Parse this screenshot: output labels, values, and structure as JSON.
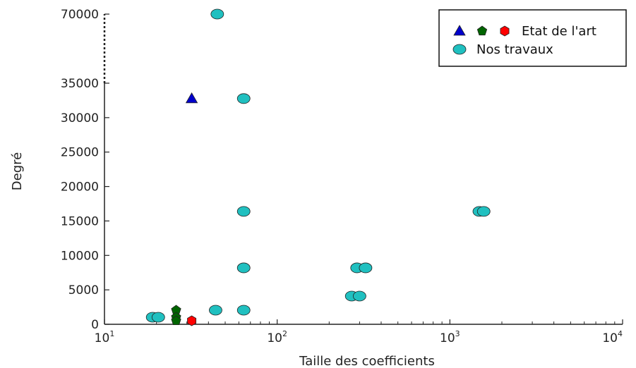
{
  "chart_data": {
    "type": "scatter",
    "xlabel": "Taille des coefficients",
    "ylabel": "Degré",
    "x_scale": "log",
    "xlim": [
      10,
      10000
    ],
    "x_ticks": [
      {
        "value": 10,
        "base": "10",
        "exp": "1"
      },
      {
        "value": 100,
        "base": "10",
        "exp": "2"
      },
      {
        "value": 1000,
        "base": "10",
        "exp": "3"
      },
      {
        "value": 10000,
        "base": "10",
        "exp": "4"
      }
    ],
    "y_axis_break": {
      "from": 35000,
      "to": 70000
    },
    "y_ticks": [
      {
        "value": 0,
        "label": "0"
      },
      {
        "value": 5000,
        "label": "5000"
      },
      {
        "value": 10000,
        "label": "10000"
      },
      {
        "value": 15000,
        "label": "15000"
      },
      {
        "value": 20000,
        "label": "20000"
      },
      {
        "value": 25000,
        "label": "25000"
      },
      {
        "value": 30000,
        "label": "30000"
      },
      {
        "value": 35000,
        "label": "35000"
      },
      {
        "value": 70000,
        "label": "70000"
      }
    ],
    "legend": {
      "position": "top-right",
      "entries": [
        {
          "label": "Etat de l'art",
          "markers": [
            "triangle",
            "pentagon",
            "hexagon"
          ],
          "colors": [
            "#0000cc",
            "#006400",
            "#ff0000"
          ]
        },
        {
          "label": "Nos travaux",
          "markers": [
            "circle"
          ],
          "colors": [
            "#20c0c0"
          ]
        }
      ]
    },
    "series": [
      {
        "group": "Etat de l'art",
        "marker": "triangle",
        "color": "#0000cc",
        "points": [
          {
            "x": 32,
            "y": 32768
          }
        ]
      },
      {
        "group": "Etat de l'art",
        "marker": "pentagon",
        "color": "#006400",
        "points": [
          {
            "x": 26,
            "y": 2048
          },
          {
            "x": 26,
            "y": 1024
          },
          {
            "x": 26,
            "y": 512
          }
        ]
      },
      {
        "group": "Etat de l'art",
        "marker": "hexagon",
        "color": "#ff0000",
        "points": [
          {
            "x": 32,
            "y": 512
          }
        ]
      },
      {
        "group": "Nos travaux",
        "marker": "circle",
        "color": "#20c0c0",
        "points": [
          {
            "x": 19,
            "y": 1024
          },
          {
            "x": 20.5,
            "y": 1024
          },
          {
            "x": 44,
            "y": 2048
          },
          {
            "x": 64,
            "y": 2048
          },
          {
            "x": 64,
            "y": 8192
          },
          {
            "x": 64,
            "y": 16384
          },
          {
            "x": 64,
            "y": 32768
          },
          {
            "x": 45,
            "y": 70000
          },
          {
            "x": 270,
            "y": 4096
          },
          {
            "x": 300,
            "y": 4096
          },
          {
            "x": 290,
            "y": 8192
          },
          {
            "x": 325,
            "y": 8192
          },
          {
            "x": 1480,
            "y": 16384
          },
          {
            "x": 1570,
            "y": 16384
          }
        ]
      }
    ]
  }
}
